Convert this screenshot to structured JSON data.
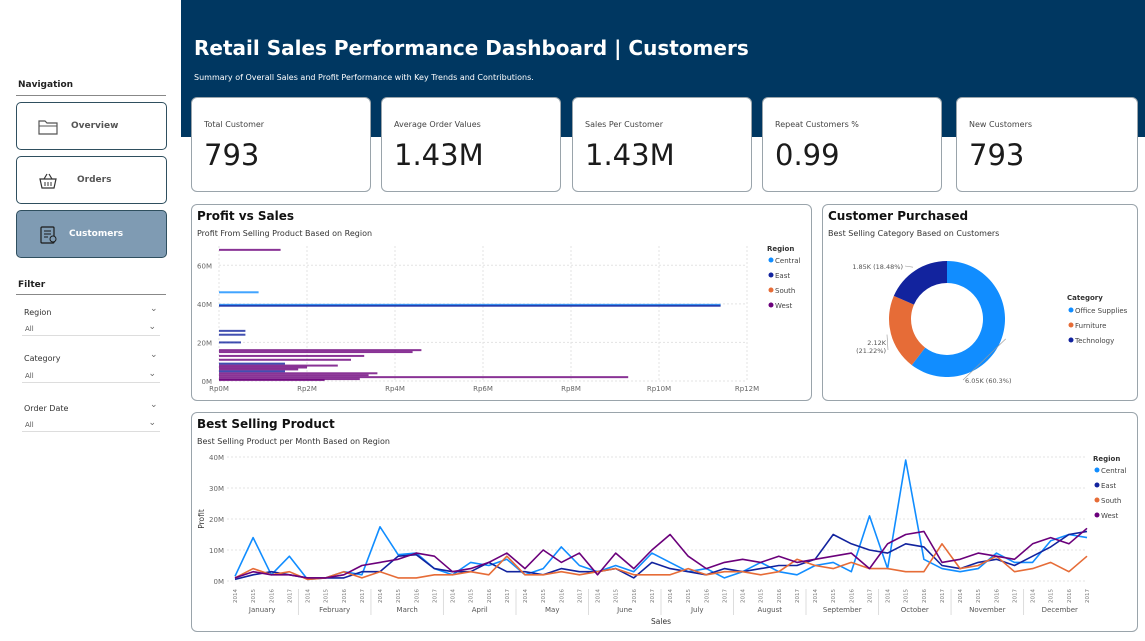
{
  "sidebar": {
    "navigation_heading": "Navigation",
    "nav_items": [
      {
        "label": "Overview",
        "icon": "folder-icon",
        "active": false
      },
      {
        "label": "Orders",
        "icon": "basket-icon",
        "active": false
      },
      {
        "label": "Customers",
        "icon": "customer-list-icon",
        "active": true
      }
    ],
    "filter_heading": "Filter",
    "filters": [
      {
        "label": "Region",
        "value": "All"
      },
      {
        "label": "Category",
        "value": "All"
      },
      {
        "label": "Order Date",
        "value": "All"
      }
    ]
  },
  "header": {
    "title": "Retail Sales Performance Dashboard | Customers",
    "subtitle": "Summary of Overall Sales and Profit Performance with Key Trends and Contributions.",
    "color": "#003761"
  },
  "kpis": [
    {
      "label": "Total Customer",
      "value": "793"
    },
    {
      "label": "Average Order Values",
      "value": "1.43M"
    },
    {
      "label": "Sales Per Customer",
      "value": "1.43M"
    },
    {
      "label": "Repeat Customers %",
      "value": "0.99"
    },
    {
      "label": "New Customers",
      "value": "793"
    }
  ],
  "colors": {
    "Central": "#118dff",
    "East": "#12239e",
    "South": "#e66c37",
    "West": "#6b007b",
    "Office Supplies": "#118dff",
    "Furniture": "#e66c37",
    "Technology": "#12239e"
  },
  "panels": {
    "profit_vs_sales": {
      "title": "Profit vs Sales",
      "subtitle": "Profit From Selling Product Based on Region"
    },
    "customer_purchased": {
      "title": "Customer Purchased",
      "subtitle": "Best Selling Category Based on Customers"
    },
    "best_selling": {
      "title": "Best Selling Product",
      "subtitle": "Best Selling Product per Month Based on Region"
    }
  },
  "chart_data": [
    {
      "type": "bar",
      "orientation": "horizontal",
      "title": "Profit vs Sales",
      "subtitle": "Profit From Selling Product Based on Region",
      "xlabel": "",
      "ylabel": "",
      "x_ticks": [
        "Rp0M",
        "Rp2M",
        "Rp4M",
        "Rp6M",
        "Rp8M",
        "Rp10M",
        "Rp12M"
      ],
      "y_ticks": [
        "0M",
        "20M",
        "40M",
        "60M"
      ],
      "xlim": [
        0,
        12
      ],
      "ylim": [
        0,
        70
      ],
      "legend_title": "Region",
      "legend": [
        "Central",
        "East",
        "South",
        "West"
      ],
      "legend_position": "right",
      "bars": [
        {
          "region": "West",
          "y": 68,
          "x": 1.4
        },
        {
          "region": "Central",
          "y": 46,
          "x": 0.9
        },
        {
          "region": "Central",
          "y": 39.5,
          "x": 11.4
        },
        {
          "region": "East",
          "y": 39,
          "x": 11.4
        },
        {
          "region": "East",
          "y": 26,
          "x": 0.6
        },
        {
          "region": "East",
          "y": 24,
          "x": 0.6
        },
        {
          "region": "East",
          "y": 20,
          "x": 0.5
        },
        {
          "region": "West",
          "y": 16,
          "x": 4.6
        },
        {
          "region": "West",
          "y": 15,
          "x": 4.4
        },
        {
          "region": "West",
          "y": 13,
          "x": 3.3
        },
        {
          "region": "West",
          "y": 11,
          "x": 3.0
        },
        {
          "region": "East",
          "y": 9,
          "x": 1.5
        },
        {
          "region": "West",
          "y": 8,
          "x": 2.7
        },
        {
          "region": "West",
          "y": 7,
          "x": 2.0
        },
        {
          "region": "West",
          "y": 6,
          "x": 1.8
        },
        {
          "region": "East",
          "y": 5,
          "x": 1.5
        },
        {
          "region": "West",
          "y": 4,
          "x": 3.6
        },
        {
          "region": "West",
          "y": 3,
          "x": 3.4
        },
        {
          "region": "West",
          "y": 2,
          "x": 9.3
        },
        {
          "region": "West",
          "y": 1,
          "x": 3.2
        },
        {
          "region": "West",
          "y": 0.5,
          "x": 2.4
        }
      ]
    },
    {
      "type": "pie",
      "donut": true,
      "title": "Customer Purchased",
      "subtitle": "Best Selling Category Based on Customers",
      "legend_title": "Category",
      "legend_position": "right",
      "slices": [
        {
          "label": "Office Supplies",
          "value": 6.05,
          "display": "6.05K (60.3%)",
          "percent": 60.3
        },
        {
          "label": "Furniture",
          "value": 2.12,
          "display": "2.12K (21.22%)",
          "percent": 21.22
        },
        {
          "label": "Technology",
          "value": 1.85,
          "display": "1.85K (18.48%)",
          "percent": 18.48
        }
      ]
    },
    {
      "type": "line",
      "title": "Best Selling Product",
      "subtitle": "Best Selling Product per Month Based on Region",
      "xlabel": "Sales",
      "ylabel": "Profit",
      "ylim": [
        0,
        40
      ],
      "y_ticks": [
        "0M",
        "10M",
        "20M",
        "30M",
        "40M"
      ],
      "months": [
        "January",
        "February",
        "March",
        "April",
        "May",
        "June",
        "July",
        "August",
        "September",
        "October",
        "November",
        "December"
      ],
      "years": [
        "2014",
        "2015",
        "2016",
        "2017"
      ],
      "legend_title": "Region",
      "legend_position": "right",
      "series": [
        {
          "name": "Central",
          "values": [
            1.5,
            14,
            2,
            8,
            0.5,
            1,
            3,
            2,
            17.5,
            8.5,
            9,
            4,
            2,
            6,
            5,
            7,
            2,
            4,
            11,
            5,
            3,
            5,
            3,
            9,
            6,
            3,
            4,
            1,
            3,
            6,
            3,
            2,
            5,
            6,
            3,
            21,
            4,
            39,
            7,
            4,
            3,
            4,
            9,
            6,
            6,
            13,
            15,
            14,
            4,
            10,
            6,
            5
          ]
        },
        {
          "name": "East",
          "values": [
            0.5,
            2,
            3,
            2,
            1,
            1,
            1,
            3,
            3,
            8,
            8.5,
            4,
            3,
            3,
            6,
            3,
            3,
            2,
            4,
            3,
            3,
            4,
            1,
            6,
            4,
            3,
            2,
            4,
            3,
            4,
            5,
            5,
            7,
            15,
            12,
            10,
            9,
            12,
            11,
            5,
            4,
            6,
            7,
            5,
            8,
            11,
            15,
            16,
            9,
            10,
            12,
            8
          ]
        },
        {
          "name": "South",
          "values": [
            1,
            4,
            2,
            3,
            0.5,
            1,
            3,
            1,
            3,
            1,
            1,
            2,
            2,
            3,
            2,
            8,
            2,
            2,
            3,
            2,
            3,
            4,
            2,
            2,
            2,
            4,
            2,
            3,
            3,
            2,
            3,
            7,
            5,
            4,
            6,
            4,
            4,
            3,
            3,
            12,
            4,
            5,
            8,
            3,
            4,
            6,
            3,
            8,
            3,
            4,
            5,
            4
          ]
        },
        {
          "name": "West",
          "values": [
            1,
            3,
            2,
            2,
            1,
            1,
            2,
            5,
            6,
            7,
            9,
            8,
            3,
            4,
            6,
            9,
            4,
            10,
            6,
            9,
            2,
            9,
            4,
            10,
            15,
            8,
            4,
            6,
            7,
            6,
            8,
            6,
            7,
            8,
            9,
            4,
            12,
            15,
            16,
            6,
            7,
            9,
            8,
            7,
            12,
            14,
            12,
            17,
            18,
            9,
            16,
            17
          ]
        }
      ]
    }
  ]
}
